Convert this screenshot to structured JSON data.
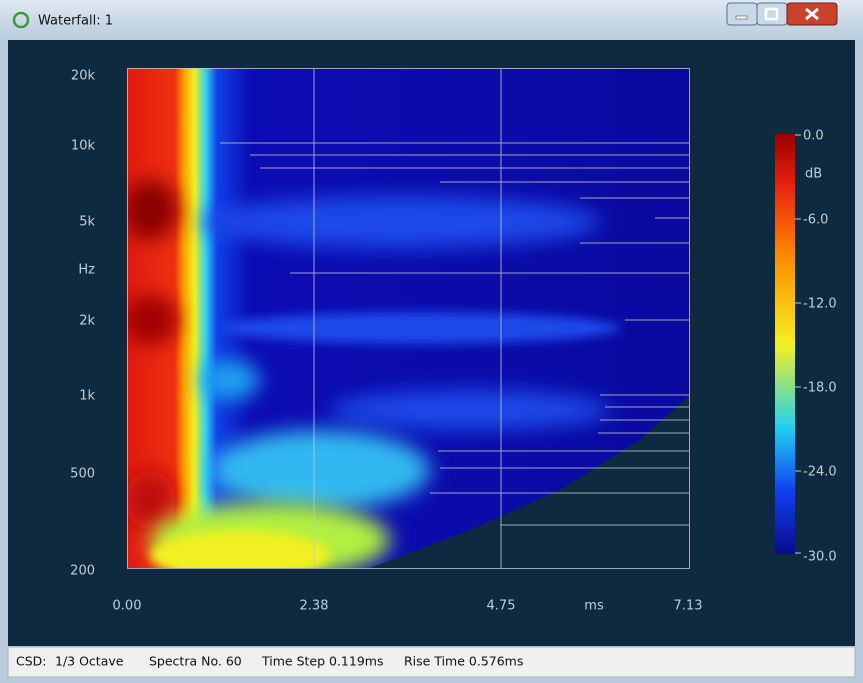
{
  "window": {
    "title": "Waterfall: 1"
  },
  "plot": {
    "y_labels": [
      "20k",
      "10k",
      "5k",
      "Hz",
      "2k",
      "1k",
      "500",
      "200"
    ],
    "x_labels": [
      "0.00",
      "2.38",
      "4.75",
      "ms",
      "7.13"
    ]
  },
  "colorbar": {
    "labels": [
      "0.0",
      "dB",
      "-6.0",
      "-12.0",
      "-18.0",
      "-24.0",
      "-30.0"
    ]
  },
  "status": {
    "items": [
      "CSD:",
      "1/3 Octave",
      "Spectra No. 60",
      "Time Step 0.119ms",
      "Rise Time 0.576ms"
    ]
  }
}
